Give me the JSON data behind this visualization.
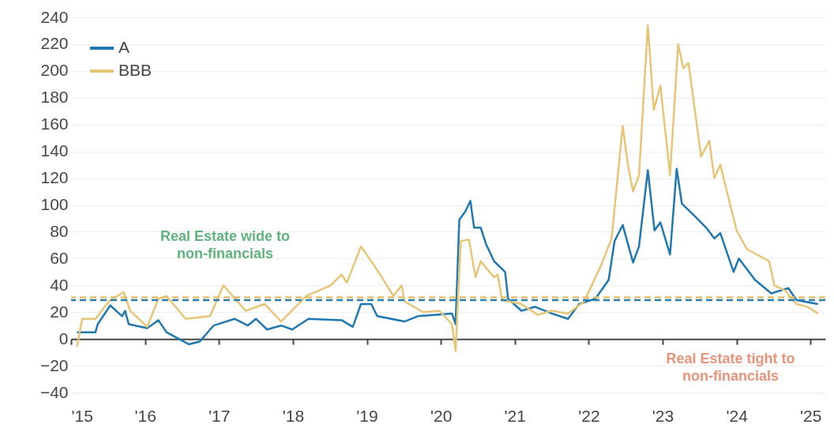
{
  "chart_data": {
    "type": "line",
    "series": [
      {
        "name": "A",
        "color": "#1f78b0",
        "x": [
          2015.08,
          2015.33,
          2015.36,
          2015.53,
          2015.69,
          2015.73,
          2015.78,
          2016.03,
          2016.18,
          2016.29,
          2016.59,
          2016.74,
          2016.88,
          2016.93,
          2017.21,
          2017.39,
          2017.5,
          2017.65,
          2017.84,
          2017.99,
          2018.21,
          2018.66,
          2018.81,
          2018.92,
          2019.06,
          2019.14,
          2019.51,
          2019.69,
          2019.95,
          2020.15,
          2020.2,
          2020.25,
          2020.33,
          2020.4,
          2020.45,
          2020.54,
          2020.61,
          2020.72,
          2020.87,
          2020.91,
          2021.09,
          2021.27,
          2021.5,
          2021.72,
          2021.87,
          2022.09,
          2022.27,
          2022.35,
          2022.46,
          2022.6,
          2022.68,
          2022.8,
          2022.89,
          2022.97,
          2023.1,
          2023.19,
          2023.26,
          2023.41,
          2023.59,
          2023.7,
          2023.78,
          2023.96,
          2024.03,
          2024.25,
          2024.47,
          2024.7,
          2024.81,
          2025.1
        ],
        "values": [
          5,
          5,
          11,
          25,
          17,
          21,
          11,
          8,
          14,
          5,
          -4,
          -2,
          7,
          10,
          15,
          10,
          15,
          7,
          10,
          7,
          15,
          14,
          9,
          26,
          26,
          17,
          13,
          17,
          18,
          19,
          11,
          89,
          95,
          103,
          83,
          83,
          71,
          58,
          50,
          30,
          21,
          24,
          19,
          15,
          26,
          30,
          44,
          73,
          85,
          57,
          69,
          126,
          81,
          87,
          63,
          127,
          101,
          93,
          83,
          75,
          79,
          50,
          60,
          44,
          34,
          38,
          29,
          26
        ]
      },
      {
        "name": "BBB",
        "color": "#e6c577",
        "x": [
          2015.08,
          2015.15,
          2015.33,
          2015.51,
          2015.71,
          2015.8,
          2016.03,
          2016.18,
          2016.29,
          2016.55,
          2016.88,
          2017.06,
          2017.36,
          2017.62,
          2017.84,
          2018.18,
          2018.51,
          2018.66,
          2018.73,
          2018.92,
          2019.06,
          2019.18,
          2019.36,
          2019.47,
          2019.51,
          2019.76,
          2019.98,
          2020.15,
          2020.2,
          2020.27,
          2020.38,
          2020.47,
          2020.54,
          2020.72,
          2020.77,
          2020.83,
          2021.09,
          2021.31,
          2021.5,
          2021.72,
          2021.94,
          2022.16,
          2022.31,
          2022.46,
          2022.53,
          2022.6,
          2022.68,
          2022.8,
          2022.88,
          2022.97,
          2023.1,
          2023.21,
          2023.28,
          2023.35,
          2023.52,
          2023.63,
          2023.7,
          2023.78,
          2024.0,
          2024.14,
          2024.44,
          2024.51,
          2024.66,
          2024.81,
          2024.96,
          2025.1
        ],
        "values": [
          -6,
          15,
          15,
          28,
          35,
          21,
          9,
          30,
          32,
          15,
          17,
          40,
          21,
          26,
          13,
          32,
          40,
          48,
          42,
          69,
          58,
          48,
          32,
          40,
          28,
          20,
          21,
          11,
          -9,
          73,
          74,
          46,
          58,
          46,
          48,
          29,
          26,
          18,
          21,
          19,
          28,
          54,
          75,
          159,
          130,
          110,
          122,
          234,
          171,
          189,
          122,
          220,
          202,
          206,
          136,
          148,
          120,
          130,
          81,
          67,
          58,
          40,
          36,
          26,
          24,
          19
        ]
      }
    ],
    "xlim": [
      2015,
      2025.2
    ],
    "xticks": [
      {
        "value": 2015,
        "label": "'15"
      },
      {
        "value": 2016,
        "label": "'16"
      },
      {
        "value": 2017,
        "label": "'17"
      },
      {
        "value": 2018,
        "label": "'18"
      },
      {
        "value": 2019,
        "label": "'19"
      },
      {
        "value": 2020,
        "label": "'20"
      },
      {
        "value": 2021,
        "label": "'21"
      },
      {
        "value": 2022,
        "label": "'22"
      },
      {
        "value": 2023,
        "label": "'23"
      },
      {
        "value": 2024,
        "label": "'24"
      },
      {
        "value": 2025,
        "label": "'25"
      }
    ],
    "ylim": [
      -40,
      240
    ],
    "yticks": [
      -40,
      -20,
      0,
      20,
      40,
      60,
      80,
      100,
      120,
      140,
      160,
      180,
      200,
      220,
      240
    ],
    "grid": "y",
    "legend": "top left",
    "ref_lines": [
      {
        "axis": "y",
        "value": 31,
        "color": "#e8c070",
        "line_style": "dashed"
      },
      {
        "axis": "y",
        "value": 29,
        "color": "#2a7fa8",
        "line_style": "dashed"
      }
    ],
    "annotations": [
      "Real Estate wide to\nnon-financials",
      "Real Estate tight to\nnon-financials"
    ]
  }
}
